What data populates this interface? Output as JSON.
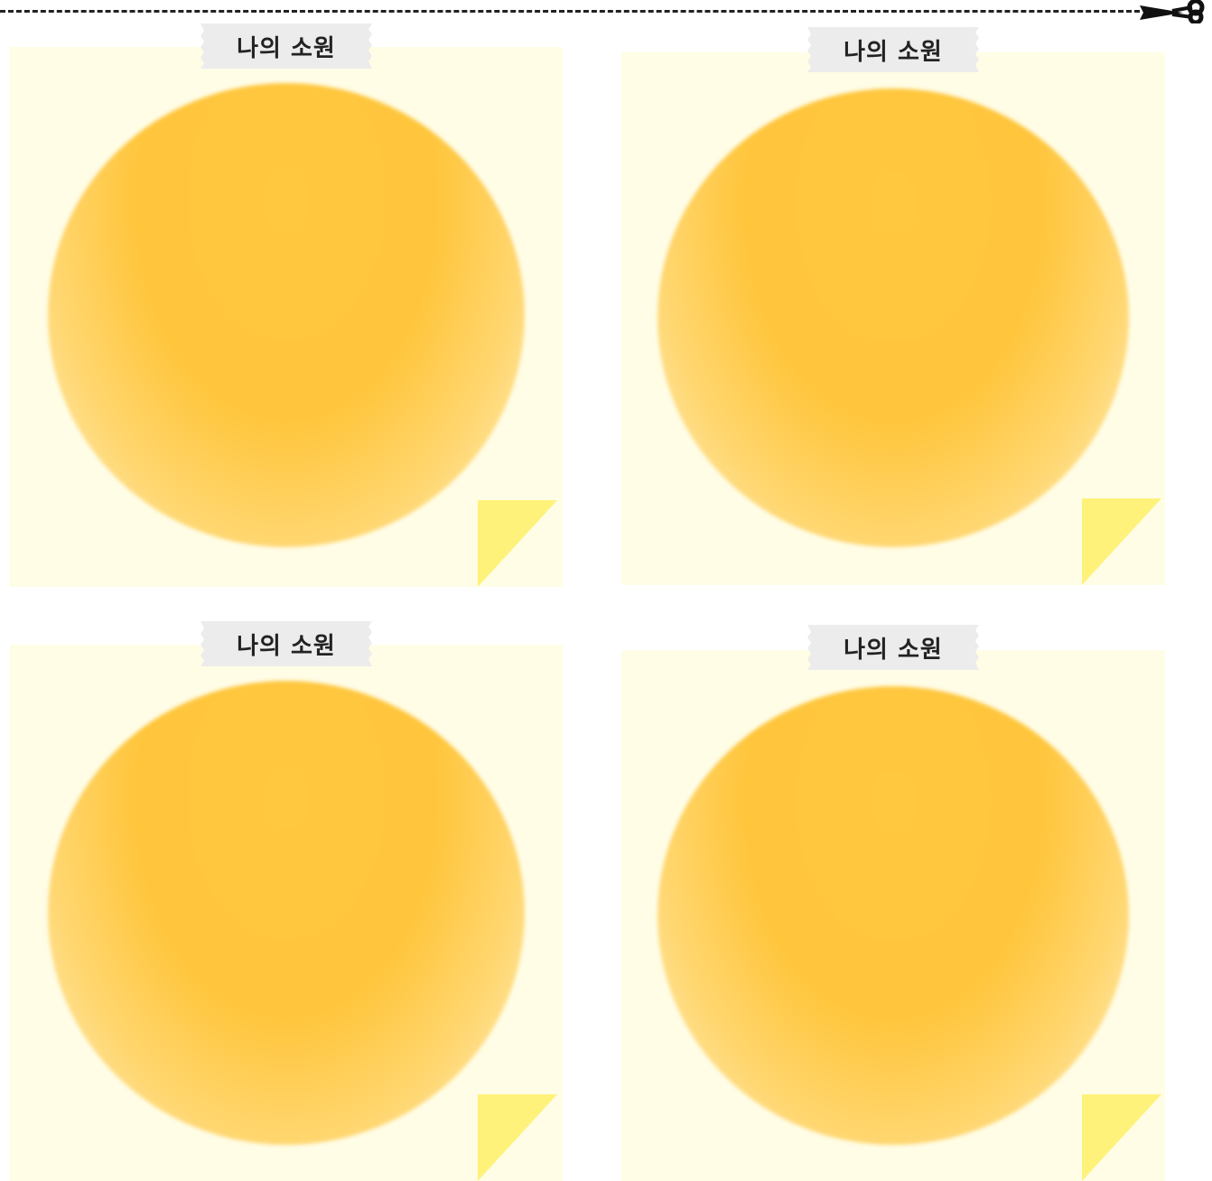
{
  "colors": {
    "paper": "#fffde6",
    "circle_top": "#ffc63d",
    "circle_bottom": "#fff3c9",
    "curl": "#fff27a",
    "tape": "#ececec",
    "cut_line": "#222222"
  },
  "icons": {
    "cut_mark": "scissors-icon"
  },
  "notes": [
    {
      "tape_label": "나의 소원"
    },
    {
      "tape_label": "나의 소원"
    },
    {
      "tape_label": "나의 소원"
    },
    {
      "tape_label": "나의 소원"
    }
  ]
}
